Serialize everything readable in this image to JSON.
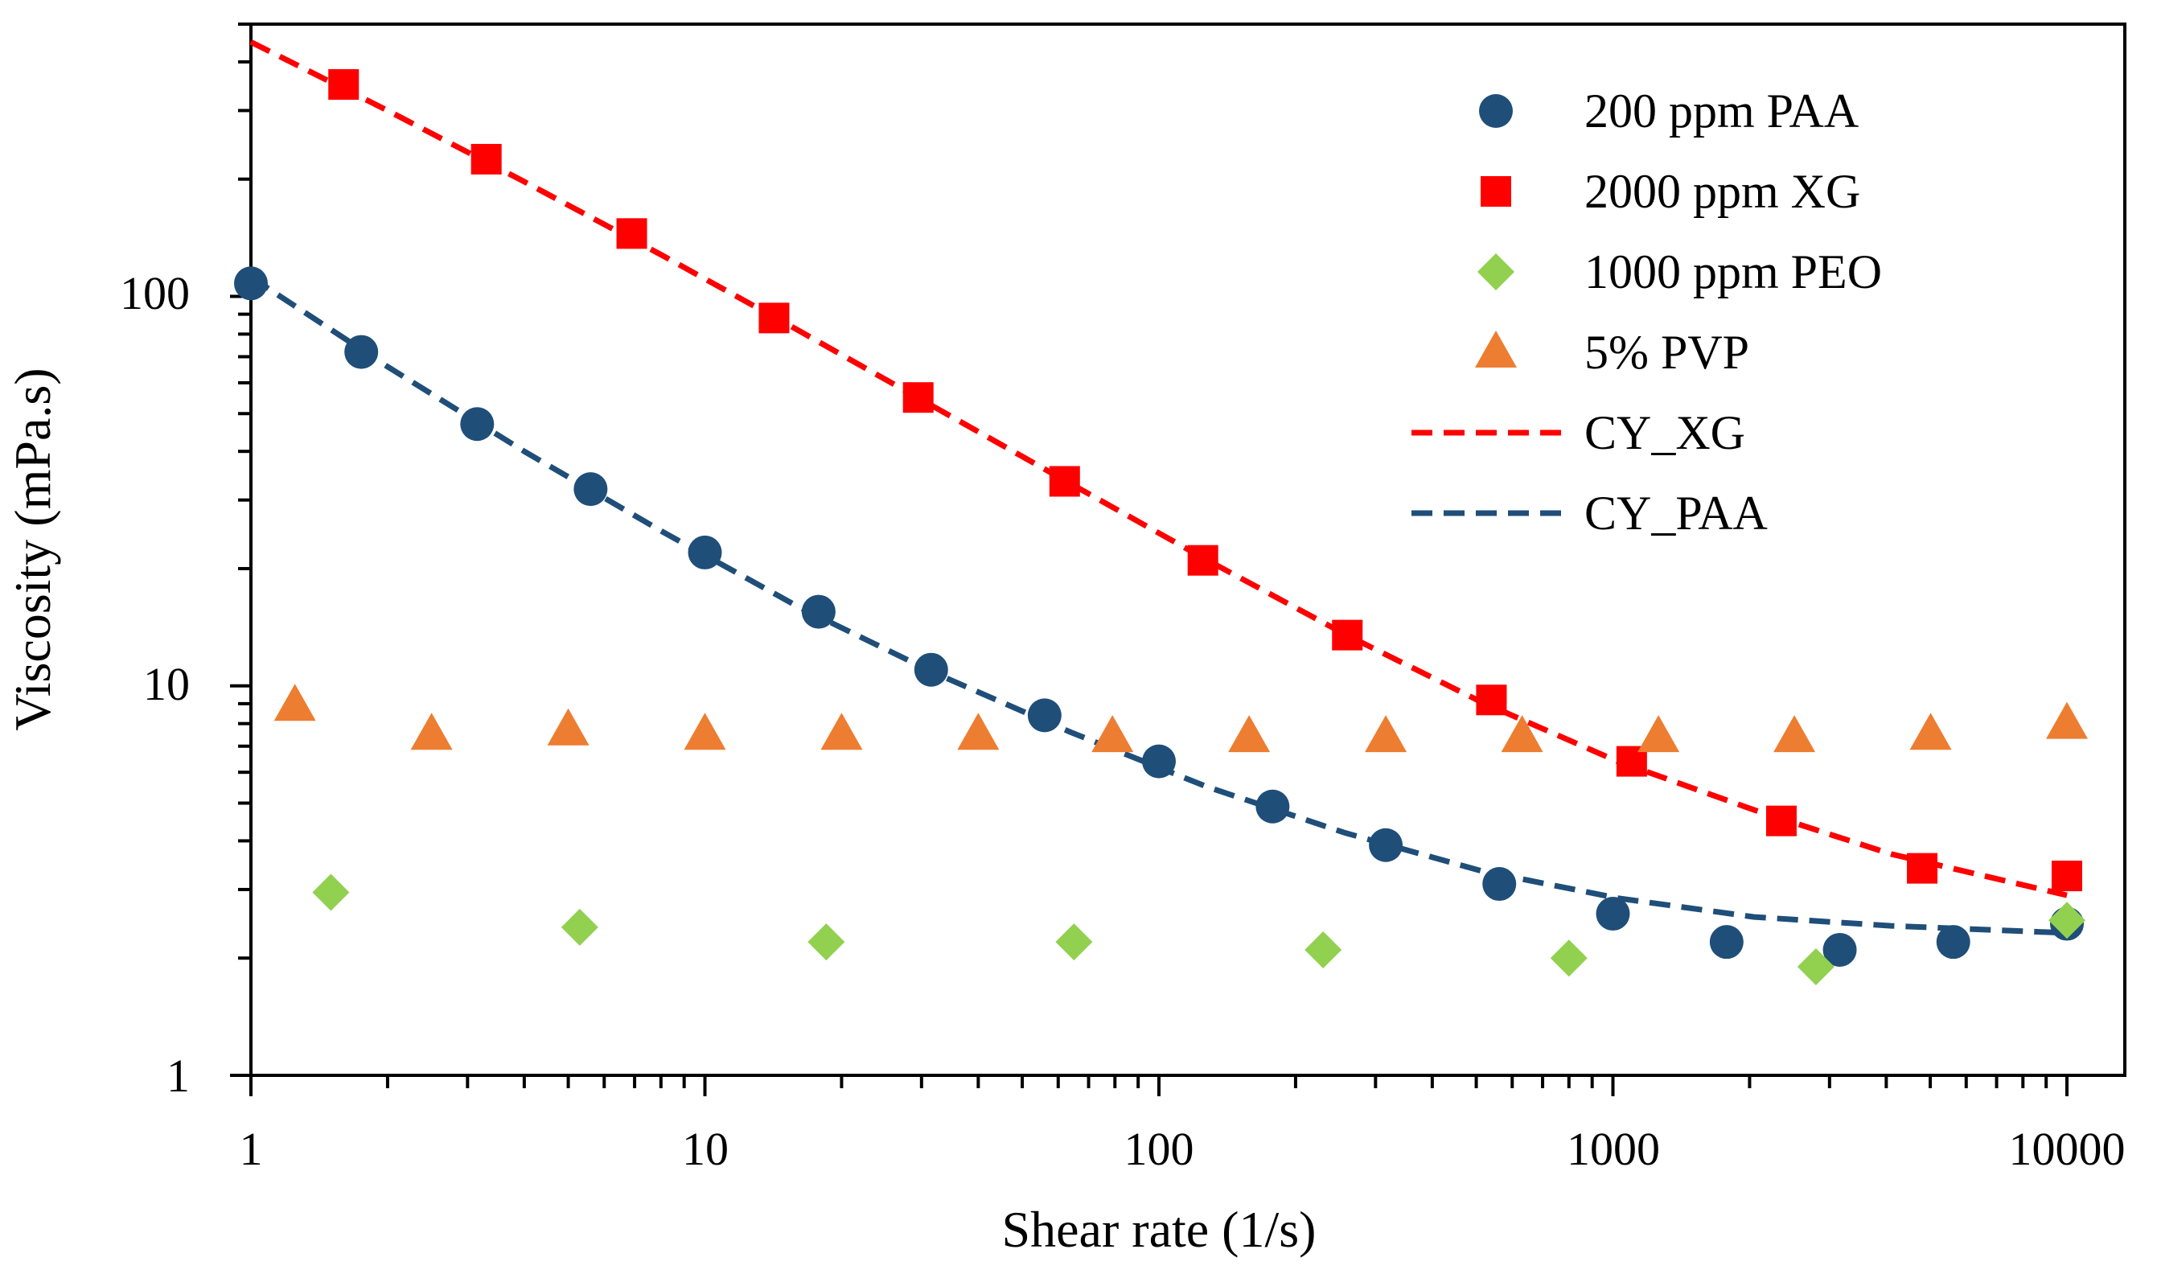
{
  "chart_data": {
    "type": "scatter",
    "title": "",
    "xlabel": "Shear rate (1/s)",
    "ylabel": "Viscosity (mPa.s)",
    "xscale": "log",
    "yscale": "log",
    "xlim": [
      1,
      10000
    ],
    "ylim": [
      1,
      500
    ],
    "x_tick_labels": [
      "1",
      "10",
      "100",
      "1000",
      "10000"
    ],
    "y_tick_labels": [
      "1",
      "10",
      "100"
    ],
    "grid": false,
    "legend_position": "top-right",
    "series": [
      {
        "name": "200 ppm PAA",
        "marker": "circle",
        "color": "#1f4e79",
        "points": [
          [
            1.0,
            108
          ],
          [
            1.75,
            72
          ],
          [
            3.15,
            47
          ],
          [
            5.6,
            32
          ],
          [
            10,
            22
          ],
          [
            17.8,
            15.5
          ],
          [
            31.5,
            11
          ],
          [
            56,
            8.4
          ],
          [
            100,
            6.4
          ],
          [
            178,
            4.9
          ],
          [
            316,
            3.9
          ],
          [
            562,
            3.1
          ],
          [
            1000,
            2.6
          ],
          [
            1780,
            2.2
          ],
          [
            3160,
            2.1
          ],
          [
            5620,
            2.2
          ],
          [
            10000,
            2.45
          ]
        ]
      },
      {
        "name": "2000 ppm XG",
        "marker": "square",
        "color": "#ff0000",
        "points": [
          [
            1.6,
            350
          ],
          [
            3.3,
            225
          ],
          [
            6.9,
            145
          ],
          [
            14.2,
            88
          ],
          [
            29.5,
            55
          ],
          [
            62,
            33.5
          ],
          [
            125,
            21
          ],
          [
            260,
            13.5
          ],
          [
            540,
            9.2
          ],
          [
            1100,
            6.4
          ],
          [
            2350,
            4.5
          ],
          [
            4800,
            3.4
          ],
          [
            10000,
            3.25
          ]
        ]
      },
      {
        "name": "1000 ppm PEO",
        "marker": "diamond",
        "color": "#92d050",
        "points": [
          [
            1.5,
            2.95
          ],
          [
            5.3,
            2.4
          ],
          [
            18.5,
            2.2
          ],
          [
            65,
            2.2
          ],
          [
            230,
            2.1
          ],
          [
            800,
            2.0
          ],
          [
            2800,
            1.9
          ],
          [
            10000,
            2.5
          ]
        ]
      },
      {
        "name": "5% PVP",
        "marker": "triangle",
        "color": "#ed7d31",
        "points": [
          [
            1.25,
            8.9
          ],
          [
            2.5,
            7.5
          ],
          [
            5.0,
            7.7
          ],
          [
            10,
            7.5
          ],
          [
            20,
            7.5
          ],
          [
            40,
            7.5
          ],
          [
            79,
            7.4
          ],
          [
            158,
            7.4
          ],
          [
            316,
            7.4
          ],
          [
            631,
            7.4
          ],
          [
            1260,
            7.4
          ],
          [
            2510,
            7.4
          ],
          [
            5010,
            7.5
          ],
          [
            10000,
            8.0
          ]
        ]
      }
    ],
    "fits": [
      {
        "name": "CY_XG",
        "style": "dashed",
        "color": "#ff0000",
        "points": [
          [
            1,
            450
          ],
          [
            2,
            300
          ],
          [
            4,
            197
          ],
          [
            8,
            128
          ],
          [
            16,
            82
          ],
          [
            32,
            52
          ],
          [
            64,
            33
          ],
          [
            128,
            21
          ],
          [
            256,
            13.6
          ],
          [
            512,
            9.1
          ],
          [
            1024,
            6.4
          ],
          [
            2048,
            4.8
          ],
          [
            4096,
            3.7
          ],
          [
            10000,
            2.9
          ]
        ]
      },
      {
        "name": "CY_PAA",
        "style": "dashed",
        "color": "#1f4e79",
        "points": [
          [
            1,
            112
          ],
          [
            2,
            66
          ],
          [
            4,
            40
          ],
          [
            8,
            25
          ],
          [
            16,
            16
          ],
          [
            32,
            10.8
          ],
          [
            64,
            7.6
          ],
          [
            128,
            5.5
          ],
          [
            256,
            4.2
          ],
          [
            512,
            3.35
          ],
          [
            1024,
            2.85
          ],
          [
            2048,
            2.55
          ],
          [
            4096,
            2.42
          ],
          [
            10000,
            2.32
          ]
        ]
      }
    ]
  }
}
